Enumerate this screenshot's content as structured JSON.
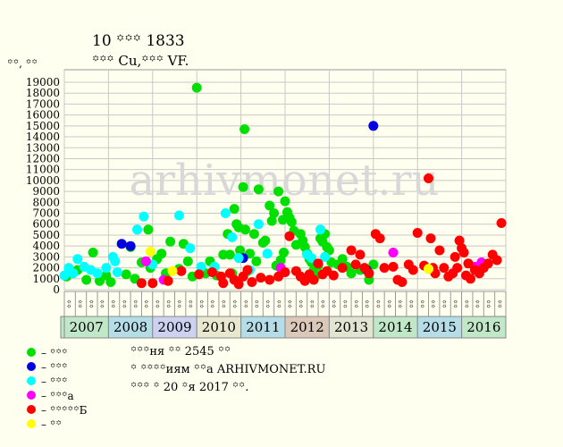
{
  "header": {
    "title_line1": "10 ꙳꙳꙳ 1833",
    "title_line2": "꙳꙳꙳ Cu,꙳꙳꙳ VF."
  },
  "watermark": "arhivmonet.ru",
  "legend": [
    {
      "label": "– ꙳꙳꙳",
      "color": "#00e000"
    },
    {
      "label": "– ꙳꙳꙳",
      "color": "#0000e0"
    },
    {
      "label": "– ꙳꙳꙳",
      "color": "#00ffff"
    },
    {
      "label": "– ꙳꙳꙳а",
      "color": "#ff00ff"
    },
    {
      "label": "– ꙳꙳꙳꙳꙳Б",
      "color": "#ff0000"
    },
    {
      "label": "– ꙳꙳",
      "color": "#ffff00"
    }
  ],
  "notes": {
    "line1": "꙳꙳꙳ня ꙳꙳ 2545 ꙳꙳",
    "line2": "꙳ ꙳꙳꙳꙳иям ꙳꙳а ARHIVMONET.RU",
    "line3": "꙳꙳꙳ ꙳ 20 ꙳я 2017 ꙳꙳."
  },
  "chart_data": {
    "type": "scatter",
    "ylabel": "꙳꙳, ꙳꙳",
    "ylim": [
      0,
      20000
    ],
    "yticks": [
      0,
      1000,
      2000,
      3000,
      4000,
      5000,
      6000,
      7000,
      8000,
      9000,
      10000,
      11000,
      12000,
      13000,
      14000,
      15000,
      16000,
      17000,
      18000,
      19000
    ],
    "grid": true,
    "legend_position": "bottom-left",
    "x_axis": "time (quarters, 2007–2016)",
    "quarter_labels": [
      "꙳꙳",
      "꙳꙳",
      "꙳꙳",
      "꙳꙳"
    ],
    "years": [
      {
        "year": "2007",
        "color": "#c0e8c8"
      },
      {
        "year": "2008",
        "color": "#b4dde8"
      },
      {
        "year": "2009",
        "color": "#ccd2f0"
      },
      {
        "year": "2010",
        "color": "#e8e8d0"
      },
      {
        "year": "2011",
        "color": "#b4dde8"
      },
      {
        "year": "2012",
        "color": "#dcc8b8"
      },
      {
        "year": "2013",
        "color": "#e0e4d0"
      },
      {
        "year": "2014",
        "color": "#c0e8c8"
      },
      {
        "year": "2015",
        "color": "#b4dde8"
      },
      {
        "year": "2016",
        "color": "#c0e8c8"
      }
    ],
    "series": [
      {
        "color": "#00e000",
        "points": [
          [
            2007.05,
            1200
          ],
          [
            2007.3,
            1800
          ],
          [
            2007.5,
            900
          ],
          [
            2007.65,
            3400
          ],
          [
            2007.8,
            800
          ],
          [
            2007.95,
            1300
          ],
          [
            2008.05,
            700
          ],
          [
            2008.4,
            1400
          ],
          [
            2008.5,
            3900
          ],
          [
            2008.6,
            1000
          ],
          [
            2008.75,
            2500
          ],
          [
            2008.9,
            5500
          ],
          [
            2008.95,
            2000
          ],
          [
            2009.1,
            2800
          ],
          [
            2009.2,
            3300
          ],
          [
            2009.3,
            1500
          ],
          [
            2009.4,
            4400
          ],
          [
            2009.6,
            1900
          ],
          [
            2009.7,
            4200
          ],
          [
            2009.8,
            2600
          ],
          [
            2009.9,
            1200
          ],
          [
            2010.0,
            18500
          ],
          [
            2010.2,
            1500
          ],
          [
            2010.3,
            2600
          ],
          [
            2010.45,
            1300
          ],
          [
            2010.6,
            3200
          ],
          [
            2010.7,
            5100
          ],
          [
            2010.75,
            3200
          ],
          [
            2010.8,
            1500
          ],
          [
            2010.85,
            7400
          ],
          [
            2010.9,
            6000
          ],
          [
            2010.95,
            5700
          ],
          [
            2010.98,
            3600
          ],
          [
            2011.05,
            9400
          ],
          [
            2011.08,
            14700
          ],
          [
            2011.1,
            5500
          ],
          [
            2011.15,
            1700
          ],
          [
            2011.2,
            3300
          ],
          [
            2011.3,
            5100
          ],
          [
            2011.35,
            2600
          ],
          [
            2011.4,
            9200
          ],
          [
            2011.5,
            4300
          ],
          [
            2011.55,
            4500
          ],
          [
            2011.65,
            7700
          ],
          [
            2011.7,
            6300
          ],
          [
            2011.75,
            7000
          ],
          [
            2011.8,
            2200
          ],
          [
            2011.85,
            9000
          ],
          [
            2011.9,
            2700
          ],
          [
            2011.95,
            6400
          ],
          [
            2011.97,
            3400
          ],
          [
            2012.0,
            8100
          ],
          [
            2012.05,
            7100
          ],
          [
            2012.1,
            6600
          ],
          [
            2012.15,
            6200
          ],
          [
            2012.2,
            5400
          ],
          [
            2012.25,
            4100
          ],
          [
            2012.35,
            5100
          ],
          [
            2012.4,
            4500
          ],
          [
            2012.45,
            3900
          ],
          [
            2012.5,
            3300
          ],
          [
            2012.55,
            2800
          ],
          [
            2012.6,
            2500
          ],
          [
            2012.65,
            1800
          ],
          [
            2012.7,
            1300
          ],
          [
            2012.75,
            2200
          ],
          [
            2012.8,
            4700
          ],
          [
            2012.85,
            4400
          ],
          [
            2012.9,
            5100
          ],
          [
            2012.95,
            3900
          ],
          [
            2013.0,
            3600
          ],
          [
            2013.05,
            2500
          ],
          [
            2013.2,
            2300
          ],
          [
            2013.3,
            2800
          ],
          [
            2013.4,
            2100
          ],
          [
            2013.5,
            1500
          ],
          [
            2013.7,
            1800
          ],
          [
            2013.9,
            900
          ],
          [
            2014.0,
            2300
          ]
        ]
      },
      {
        "color": "#0000e0",
        "points": [
          [
            2008.3,
            4200
          ],
          [
            2008.5,
            4000
          ],
          [
            2011.05,
            2900
          ],
          [
            2013.85,
            1800
          ],
          [
            2014.0,
            15000
          ]
        ]
      },
      {
        "color": "#00ffff",
        "points": [
          [
            2007.0,
            1300
          ],
          [
            2007.1,
            2000
          ],
          [
            2007.2,
            1500
          ],
          [
            2007.3,
            2800
          ],
          [
            2007.45,
            2100
          ],
          [
            2007.6,
            1800
          ],
          [
            2007.75,
            1500
          ],
          [
            2007.95,
            2000
          ],
          [
            2008.1,
            3000
          ],
          [
            2008.15,
            2600
          ],
          [
            2008.2,
            1600
          ],
          [
            2008.65,
            5500
          ],
          [
            2008.8,
            6700
          ],
          [
            2009.0,
            2300
          ],
          [
            2009.6,
            6800
          ],
          [
            2009.85,
            3800
          ],
          [
            2010.1,
            2100
          ],
          [
            2010.4,
            2100
          ],
          [
            2010.65,
            7000
          ],
          [
            2010.8,
            4800
          ],
          [
            2010.95,
            2900
          ],
          [
            2011.2,
            1800
          ],
          [
            2011.4,
            6000
          ],
          [
            2011.6,
            3300
          ],
          [
            2012.5,
            3200
          ],
          [
            2012.6,
            2900
          ],
          [
            2012.8,
            5500
          ],
          [
            2012.9,
            3000
          ]
        ]
      },
      {
        "color": "#ff00ff",
        "points": [
          [
            2008.85,
            2600
          ],
          [
            2009.25,
            900
          ],
          [
            2011.9,
            2000
          ],
          [
            2014.45,
            3400
          ],
          [
            2016.3,
            2100
          ],
          [
            2016.45,
            2500
          ]
        ]
      },
      {
        "color": "#ff0000",
        "points": [
          [
            2008.75,
            600
          ],
          [
            2009.0,
            600
          ],
          [
            2009.35,
            800
          ],
          [
            2009.65,
            1700
          ],
          [
            2010.05,
            1400
          ],
          [
            2010.35,
            1600
          ],
          [
            2010.55,
            1200
          ],
          [
            2010.6,
            600
          ],
          [
            2010.75,
            1500
          ],
          [
            2010.85,
            900
          ],
          [
            2010.95,
            500
          ],
          [
            2011.05,
            1200
          ],
          [
            2011.15,
            1800
          ],
          [
            2011.25,
            700
          ],
          [
            2011.45,
            1100
          ],
          [
            2011.65,
            900
          ],
          [
            2011.85,
            1200
          ],
          [
            2012.0,
            1600
          ],
          [
            2012.1,
            4900
          ],
          [
            2012.25,
            1700
          ],
          [
            2012.35,
            1200
          ],
          [
            2012.45,
            800
          ],
          [
            2012.55,
            1400
          ],
          [
            2012.65,
            900
          ],
          [
            2012.75,
            2400
          ],
          [
            2012.85,
            1400
          ],
          [
            2012.95,
            1700
          ],
          [
            2013.1,
            1300
          ],
          [
            2013.3,
            2000
          ],
          [
            2013.5,
            3600
          ],
          [
            2013.6,
            2300
          ],
          [
            2013.7,
            3200
          ],
          [
            2013.8,
            2000
          ],
          [
            2013.9,
            1500
          ],
          [
            2014.05,
            5100
          ],
          [
            2014.15,
            4700
          ],
          [
            2014.25,
            2000
          ],
          [
            2014.45,
            2100
          ],
          [
            2014.55,
            900
          ],
          [
            2014.65,
            700
          ],
          [
            2014.8,
            2300
          ],
          [
            2014.9,
            1800
          ],
          [
            2015.0,
            5200
          ],
          [
            2015.15,
            2200
          ],
          [
            2015.25,
            10200
          ],
          [
            2015.3,
            4700
          ],
          [
            2015.35,
            2000
          ],
          [
            2015.4,
            1500
          ],
          [
            2015.5,
            3600
          ],
          [
            2015.6,
            2000
          ],
          [
            2015.7,
            1200
          ],
          [
            2015.8,
            1500
          ],
          [
            2015.85,
            3000
          ],
          [
            2015.9,
            2000
          ],
          [
            2015.95,
            4500
          ],
          [
            2016.0,
            3800
          ],
          [
            2016.05,
            3400
          ],
          [
            2016.1,
            1300
          ],
          [
            2016.15,
            2400
          ],
          [
            2016.2,
            1000
          ],
          [
            2016.3,
            1800
          ],
          [
            2016.4,
            1500
          ],
          [
            2016.5,
            2000
          ],
          [
            2016.6,
            2400
          ],
          [
            2016.7,
            3200
          ],
          [
            2016.8,
            2700
          ],
          [
            2016.9,
            6100
          ]
        ]
      },
      {
        "color": "#ffff00",
        "points": [
          [
            2008.95,
            3500
          ],
          [
            2009.45,
            1700
          ],
          [
            2015.25,
            1900
          ]
        ]
      }
    ]
  }
}
